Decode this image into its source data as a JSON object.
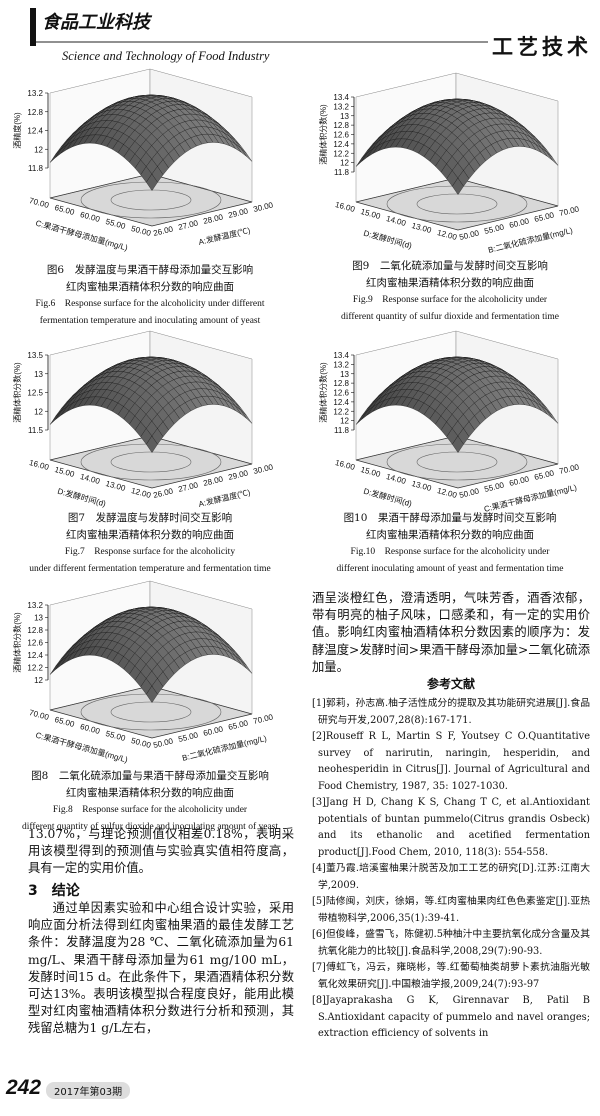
{
  "header": {
    "journal_cn": "食品工业科技",
    "journal_en": "Science and Technology of Food Industry",
    "section": "工艺技术"
  },
  "figures": [
    {
      "caption_cn": [
        "图6　发酵温度与果酒干酵母添加量交互影响",
        "红肉蜜柚果酒精体积分数的响应曲面"
      ],
      "caption_en": [
        "Fig.6　Response surface for the alcoholicity under different",
        "fermentation temperature and inoculating amount of yeast"
      ],
      "plot": {
        "z_label": "酒精度(%)",
        "z_ticks": [
          "11.8",
          "12",
          "12.4",
          "12.8",
          "13.2"
        ],
        "x_label": "C:果酒干酵母添加量(mg/L)",
        "x_ticks": [
          "70.00",
          "65.00",
          "60.00",
          "55.00",
          "50.00"
        ],
        "y_label": "A:发酵温度(℃)",
        "y_ticks": [
          "30.00",
          "29.00",
          "28.00",
          "27.00",
          "26.00"
        ]
      }
    },
    {
      "caption_cn": [
        "图9　二氧化硫添加量与发酵时间交互影响",
        "红肉蜜柚果酒精体积分数的响应曲面"
      ],
      "caption_en": [
        "Fig.9　Response surface for the alcoholicity under",
        "different quantity of sulfur dioxide and fermentation time"
      ],
      "plot": {
        "z_label": "酒精体积分数(%)",
        "z_ticks": [
          "11.8",
          "12",
          "12.2",
          "12.4",
          "12.6",
          "12.8",
          "13",
          "13.2",
          "13.4"
        ],
        "x_label": "D:发酵时间(d)",
        "x_ticks": [
          "16.00",
          "15.00",
          "14.00",
          "13.00",
          "12.00"
        ],
        "y_label": "B:二氧化硫添加量(mg/L)",
        "y_ticks": [
          "70.00",
          "65.00",
          "60.00",
          "55.00",
          "50.00"
        ]
      }
    },
    {
      "caption_cn": [
        "图7　发酵温度与发酵时间交互影响",
        "红肉蜜柚果酒精体积分数的响应曲面"
      ],
      "caption_en": [
        "Fig.7　Response surface for the alcoholicity",
        "under different fermentation temperature and fermentation time"
      ],
      "plot": {
        "z_label": "酒精体积分数(%)",
        "z_ticks": [
          "11.5",
          "12",
          "12.5",
          "13",
          "13.5"
        ],
        "x_label": "D:发酵时间(d)",
        "x_ticks": [
          "16.00",
          "15.00",
          "14.00",
          "13.00",
          "12.00"
        ],
        "y_label": "A:发酵温度(℃)",
        "y_ticks": [
          "30.00",
          "29.00",
          "28.00",
          "27.00",
          "26.00"
        ]
      }
    },
    {
      "caption_cn": [
        "图10　果酒干酵母添加量与发酵时间交互影响",
        "红肉蜜柚果酒精体积分数的响应曲面"
      ],
      "caption_en": [
        "Fig.10　Response surface for the alcoholicity under",
        "different inoculating amount of yeast and fermentation time"
      ],
      "plot": {
        "z_label": "酒精体积分数(%)",
        "z_ticks": [
          "11.8",
          "12",
          "12.2",
          "12.4",
          "12.6",
          "12.8",
          "13",
          "13.2",
          "13.4"
        ],
        "x_label": "D:发酵时间(d)",
        "x_ticks": [
          "16.00",
          "15.00",
          "14.00",
          "13.00",
          "12.00"
        ],
        "y_label": "C:果酒干酵母添加量(mg/L)",
        "y_ticks": [
          "70.00",
          "65.00",
          "60.00",
          "55.00",
          "50.00"
        ]
      }
    },
    {
      "caption_cn": [
        "图8　二氧化硫添加量与果酒干酵母添加量交互影响",
        "红肉蜜柚果酒精体积分数的响应曲面"
      ],
      "caption_en": [
        "Fig.8　Response surface for the alcoholicity under",
        "different quantity of sulfur dioxide and inoculating amount of yeast"
      ],
      "plot": {
        "z_label": "酒精体积分数(%)",
        "z_ticks": [
          "12",
          "12.2",
          "12.4",
          "12.6",
          "12.8",
          "13",
          "13.2"
        ],
        "x_label": "C:果酒干酵母添加量(mg/L)",
        "x_ticks": [
          "70.00",
          "65.00",
          "60.00",
          "55.00",
          "50.00"
        ],
        "y_label": "B:二氧化硫添加量(mg/L)",
        "y_ticks": [
          "70.00",
          "65.00",
          "60.00",
          "55.00",
          "50.00"
        ]
      }
    }
  ],
  "body": {
    "left_paragraph_end": "13.07%，与理论预测值仅相差0.18%，表明采用该模型得到的预测值与实验真实值相符度高，具有一定的实用价值。",
    "section_heading": "3　结论",
    "conclusion_paragraph": "通过单因素实验和中心组合设计实验，采用响应面分析法得到红肉蜜柚果酒的最佳发酵工艺条件：发酵温度为28 ℃、二氧化硫添加量为61 mg/L、果酒干酵母添加量为61 mg/100 mL，发酵时间15 d。在此条件下，果酒酒精体积分数可达13%。表明该模型拟合程度良好，能用此模型对红肉蜜柚酒精体积分数进行分析和预测，其残留总糖为1 g/L左右，",
    "right_paragraph": "酒呈淡橙红色，澄清透明，气味芳香，酒香浓郁，带有明亮的柚子风味，口感柔和，有一定的实用价值。影响红肉蜜柚酒精体积分数因素的顺序为：发酵温度>发酵时间>果酒干酵母添加量>二氧化硫添加量。"
  },
  "references": {
    "heading": "参考文献",
    "items": [
      "[1]郭莉，孙志高.柚子活性成分的提取及其功能研究进展[J].食品研究与开发,2007,28(8):167-171.",
      "[2]Rouseff R L, Martin S F, Youtsey C O.Quantitative survey of narirutin, naringin, hesperidin, and neohesperidin in Citrus[J]. Journal of Agricultural and Food Chemistry, 1987, 35: 1027-1030.",
      "[3]Jang H D, Chang K S, Chang T C, et al.Antioxidant potentials of buntan pummelo(Citrus grandis Osbeck) and its ethanolic and acetified fermentation product[J].Food Chem, 2010, 118(3): 554-558.",
      "[4]董乃霞.培溪蜜柚果汁脱苦及加工工艺的研究[D].江苏:江南大学,2009.",
      "[5]陆修闽，刘庆，徐娟，等.红肉蜜柚果肉红色色素鉴定[J].亚热带植物科学,2006,35(1):39-41.",
      "[6]但俊峰，盛雪飞，陈健初.5种柚汁中主要抗氧化成分含量及其抗氧化能力的比较[J].食品科学,2008,29(7):90-93.",
      "[7]傅虹飞，冯云，雍晓彬，等.红葡萄柚类胡萝卜素抗油脂光敏氧化效果研究[J].中国粮油学报,2009,24(7):93-97",
      "[8]Jayaprakasha G K, Girennavar B, Patil B S.Antioxidant capacity of pummelo and navel oranges; extraction efficiency of solvents in"
    ]
  },
  "footer": {
    "page": "242",
    "issue": "2017年第03期"
  }
}
